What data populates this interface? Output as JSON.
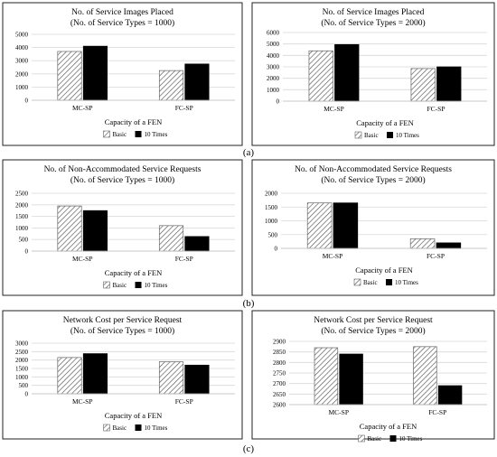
{
  "figure": {
    "row_labels": [
      "(a)",
      "(b)",
      "(c)"
    ]
  },
  "chart_data": [
    {
      "type": "bar",
      "title": "No. of Service Images Placed",
      "subtitle": "(No. of Service Types = 1000)",
      "xlabel": "Capacity of a FEN",
      "ylabel": "",
      "categories": [
        "MC-SP",
        "FC-SP"
      ],
      "series": [
        {
          "name": "Basic",
          "values": [
            3700,
            2250
          ]
        },
        {
          "name": "10 Times",
          "values": [
            4100,
            2750
          ]
        }
      ],
      "ylim": [
        0,
        5000
      ],
      "yticks": [
        0,
        1000,
        2000,
        3000,
        4000,
        5000
      ],
      "legend": "bottom",
      "grid": true
    },
    {
      "type": "bar",
      "title": "No. of Service Images Placed",
      "subtitle": "(No. of Service Types = 2000)",
      "xlabel": "Capacity of a FEN",
      "ylabel": "",
      "categories": [
        "MC-SP",
        "FC-SP"
      ],
      "series": [
        {
          "name": "Basic",
          "values": [
            4400,
            2850
          ]
        },
        {
          "name": "10 Times",
          "values": [
            4950,
            3000
          ]
        }
      ],
      "ylim": [
        0,
        6000
      ],
      "yticks": [
        0,
        1000,
        2000,
        3000,
        4000,
        5000,
        6000
      ],
      "legend": "bottom",
      "grid": true
    },
    {
      "type": "bar",
      "title": "No. of Non-Accommodated Service Requests",
      "subtitle": "(No. of Service Types = 1000)",
      "xlabel": "Capacity of a FEN",
      "ylabel": "",
      "categories": [
        "MC-SP",
        "FC-SP"
      ],
      "series": [
        {
          "name": "Basic",
          "values": [
            1950,
            1100
          ]
        },
        {
          "name": "10 Times",
          "values": [
            1750,
            630
          ]
        }
      ],
      "ylim": [
        0,
        2500
      ],
      "yticks": [
        0,
        500,
        1000,
        1500,
        2000,
        2500
      ],
      "legend": "bottom",
      "grid": true
    },
    {
      "type": "bar",
      "title": "No. of Non-Accommodated Service Requests",
      "subtitle": "(No. of Service Types = 2000)",
      "xlabel": "Capacity of a FEN",
      "ylabel": "",
      "categories": [
        "MC-SP",
        "FC-SP"
      ],
      "series": [
        {
          "name": "Basic",
          "values": [
            1650,
            350
          ]
        },
        {
          "name": "10 Times",
          "values": [
            1650,
            200
          ]
        }
      ],
      "ylim": [
        0,
        2000
      ],
      "yticks": [
        0,
        500,
        1000,
        1500,
        2000
      ],
      "legend": "bottom",
      "grid": true
    },
    {
      "type": "bar",
      "title": "Network Cost per Service Request",
      "subtitle": "(No. of Service Types = 1000)",
      "xlabel": "Capacity of a FEN",
      "ylabel": "",
      "categories": [
        "MC-SP",
        "FC-SP"
      ],
      "series": [
        {
          "name": "Basic",
          "values": [
            2150,
            1900
          ]
        },
        {
          "name": "10 Times",
          "values": [
            2380,
            1700
          ]
        }
      ],
      "ylim": [
        0,
        3000
      ],
      "yticks": [
        0,
        500,
        1000,
        1500,
        2000,
        2500,
        3000
      ],
      "legend": "bottom",
      "grid": true
    },
    {
      "type": "bar",
      "title": "Network Cost per Service Request",
      "subtitle": "(No. of Service Types = 2000)",
      "xlabel": "Capacity of a FEN",
      "ylabel": "",
      "categories": [
        "MC-SP",
        "FC-SP"
      ],
      "series": [
        {
          "name": "Basic",
          "values": [
            2870,
            2875
          ]
        },
        {
          "name": "10 Times",
          "values": [
            2840,
            2690
          ]
        }
      ],
      "ylim": [
        2600,
        2900
      ],
      "yticks": [
        2600,
        2650,
        2700,
        2750,
        2800,
        2850,
        2900
      ],
      "legend": "bottom",
      "grid": true
    }
  ]
}
